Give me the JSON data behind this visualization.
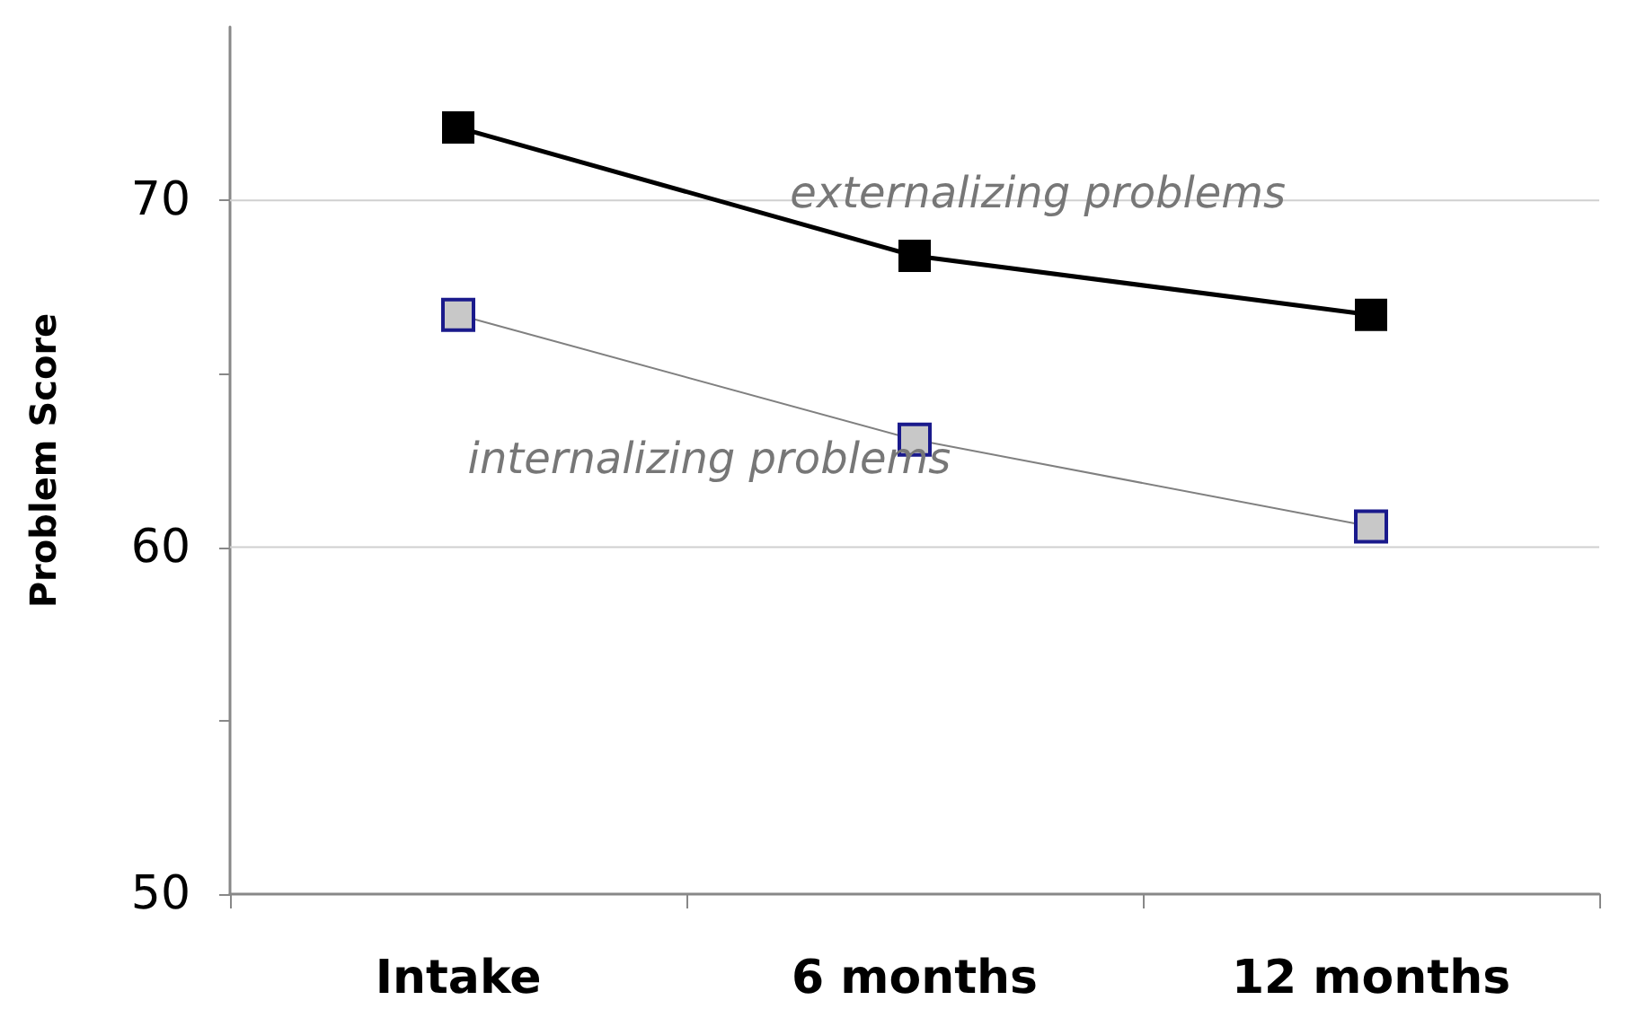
{
  "chart_data": {
    "type": "line",
    "ylabel": "Problem Score",
    "categories": [
      "Intake",
      "6 months",
      "12 months"
    ],
    "series": [
      {
        "name": "externalizing problems",
        "color": "#000000",
        "values": [
          72.1,
          68.4,
          66.7
        ]
      },
      {
        "name": "internalizing problems",
        "color": "#808080",
        "values": [
          66.7,
          63.1,
          60.6
        ]
      }
    ],
    "ylim": [
      50,
      75
    ],
    "yticks": [
      50,
      {
        "value": 55,
        "label": null
      },
      60,
      {
        "value": 65,
        "label": null
      },
      70
    ],
    "grid": "y",
    "legend": false,
    "marker": "square",
    "line_style": "solid"
  }
}
